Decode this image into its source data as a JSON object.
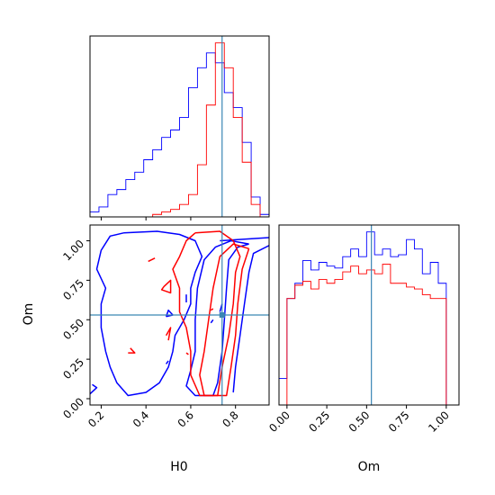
{
  "chart_data": [
    {
      "type": "histogram",
      "panel": "H0 marginal",
      "xlim": [
        0.15,
        0.95
      ],
      "series": [
        {
          "color": "#0000ff",
          "bins": [
            0.15,
            0.19,
            0.23,
            0.27,
            0.31,
            0.35,
            0.39,
            0.43,
            0.47,
            0.51,
            0.55,
            0.59,
            0.63,
            0.67,
            0.71,
            0.75,
            0.79,
            0.83,
            0.87,
            0.91,
            0.95
          ],
          "counts": [
            2,
            4,
            9,
            11,
            15,
            18,
            23,
            27,
            32,
            35,
            40,
            52,
            60,
            66,
            62,
            50,
            44,
            30,
            8,
            1
          ]
        },
        {
          "color": "#ff0000",
          "bins": [
            0.15,
            0.19,
            0.23,
            0.27,
            0.31,
            0.35,
            0.39,
            0.43,
            0.47,
            0.51,
            0.55,
            0.59,
            0.63,
            0.67,
            0.71,
            0.75,
            0.79,
            0.83,
            0.87,
            0.91,
            0.95
          ],
          "counts": [
            0,
            0,
            0,
            0,
            0,
            0,
            0,
            1,
            2,
            3,
            5,
            9,
            21,
            45,
            70,
            60,
            40,
            22,
            5,
            0
          ]
        }
      ],
      "truth_x": 0.74
    },
    {
      "type": "histogram",
      "panel": "Om marginal",
      "xlim": [
        -0.05,
        1.08
      ],
      "series": [
        {
          "color": "#0000ff",
          "bins": [
            -0.05,
            0.0,
            0.05,
            0.1,
            0.15,
            0.2,
            0.25,
            0.3,
            0.35,
            0.4,
            0.45,
            0.5,
            0.55,
            0.6,
            0.65,
            0.7,
            0.75,
            0.8,
            0.85,
            0.9,
            0.95,
            1.0,
            1.05
          ],
          "counts": [
            14,
            56,
            64,
            76,
            71,
            75,
            73,
            72,
            78,
            82,
            78,
            91,
            79,
            82,
            78,
            79,
            87,
            82,
            69,
            75,
            64,
            0
          ]
        },
        {
          "color": "#ff0000",
          "bins": [
            -0.05,
            0.0,
            0.05,
            0.1,
            0.15,
            0.2,
            0.25,
            0.3,
            0.35,
            0.4,
            0.45,
            0.5,
            0.55,
            0.6,
            0.65,
            0.7,
            0.75,
            0.8,
            0.85,
            0.9,
            0.95,
            1.0,
            1.05
          ],
          "counts": [
            0,
            56,
            63,
            65,
            61,
            66,
            64,
            66,
            70,
            73,
            69,
            71,
            69,
            74,
            64,
            64,
            62,
            61,
            58,
            56,
            56,
            0
          ]
        }
      ],
      "truth_x": 0.53
    },
    {
      "type": "contour",
      "panel": "H0 vs Om joint",
      "xlabel": "H0",
      "ylabel": "Om",
      "xlim": [
        0.15,
        0.95
      ],
      "ylim": [
        -0.04,
        1.1
      ],
      "xticks": [
        "0.2",
        "0.4",
        "0.6",
        "0.8"
      ],
      "yticks": [
        "0.00",
        "0.25",
        "0.50",
        "0.75",
        "1.00"
      ],
      "truth": [
        0.74,
        0.53
      ],
      "series": [
        {
          "color": "#0000ff",
          "contours": [
            [
              [
                0.3,
                1.05
              ],
              [
                0.45,
                1.06
              ],
              [
                0.55,
                1.04
              ],
              [
                0.62,
                1.0
              ],
              [
                0.65,
                0.9
              ],
              [
                0.62,
                0.8
              ],
              [
                0.6,
                0.7
              ],
              [
                0.6,
                0.6
              ],
              [
                0.57,
                0.5
              ],
              [
                0.53,
                0.4
              ],
              [
                0.52,
                0.3
              ],
              [
                0.5,
                0.2
              ],
              [
                0.46,
                0.1
              ],
              [
                0.4,
                0.04
              ],
              [
                0.32,
                0.02
              ],
              [
                0.27,
                0.1
              ],
              [
                0.24,
                0.2
              ],
              [
                0.22,
                0.3
              ],
              [
                0.2,
                0.45
              ],
              [
                0.2,
                0.6
              ],
              [
                0.22,
                0.7
              ],
              [
                0.18,
                0.82
              ],
              [
                0.2,
                0.94
              ],
              [
                0.24,
                1.03
              ],
              [
                0.3,
                1.05
              ]
            ],
            [
              [
                0.73,
                1.0
              ],
              [
                0.95,
                1.02
              ]
            ],
            [
              [
                0.95,
                0.97
              ],
              [
                0.88,
                0.92
              ],
              [
                0.86,
                0.8
              ],
              [
                0.84,
                0.6
              ],
              [
                0.82,
                0.4
              ],
              [
                0.8,
                0.2
              ],
              [
                0.79,
                0.04
              ]
            ],
            [
              [
                0.86,
                0.98
              ],
              [
                0.81,
                0.96
              ],
              [
                0.77,
                0.88
              ],
              [
                0.76,
                0.7
              ],
              [
                0.75,
                0.5
              ],
              [
                0.74,
                0.3
              ],
              [
                0.72,
                0.1
              ],
              [
                0.7,
                0.02
              ],
              [
                0.62,
                0.02
              ],
              [
                0.58,
                0.08
              ],
              [
                0.6,
                0.18
              ],
              [
                0.62,
                0.3
              ],
              [
                0.62,
                0.5
              ],
              [
                0.63,
                0.7
              ],
              [
                0.66,
                0.88
              ],
              [
                0.71,
                0.96
              ],
              [
                0.78,
                1.0
              ],
              [
                0.86,
                0.98
              ]
            ],
            [
              [
                0.15,
                0.03
              ],
              [
                0.18,
                0.07
              ],
              [
                0.16,
                0.09
              ]
            ],
            [
              [
                0.49,
                0.52
              ],
              [
                0.5,
                0.56
              ],
              [
                0.52,
                0.53
              ],
              [
                0.49,
                0.52
              ]
            ],
            [
              [
                0.58,
                0.61
              ],
              [
                0.58,
                0.66
              ]
            ],
            [
              [
                0.69,
                0.48
              ],
              [
                0.7,
                0.5
              ]
            ],
            [
              [
                0.49,
                0.22
              ],
              [
                0.5,
                0.24
              ]
            ],
            [
              [
                0.73,
                0.55
              ],
              [
                0.74,
                0.6
              ]
            ]
          ]
        },
        {
          "color": "#ff0000",
          "contours": [
            [
              [
                0.62,
                1.05
              ],
              [
                0.73,
                1.06
              ],
              [
                0.79,
                1.0
              ],
              [
                0.82,
                0.9
              ],
              [
                0.8,
                0.8
              ],
              [
                0.79,
                0.6
              ],
              [
                0.77,
                0.4
              ],
              [
                0.74,
                0.2
              ],
              [
                0.72,
                0.02
              ],
              [
                0.64,
                0.02
              ],
              [
                0.6,
                0.15
              ],
              [
                0.6,
                0.3
              ],
              [
                0.58,
                0.45
              ],
              [
                0.55,
                0.55
              ],
              [
                0.55,
                0.7
              ],
              [
                0.52,
                0.82
              ],
              [
                0.55,
                0.9
              ],
              [
                0.58,
                1.0
              ],
              [
                0.62,
                1.05
              ]
            ],
            [
              [
                0.86,
                0.95
              ],
              [
                0.83,
                0.82
              ],
              [
                0.81,
                0.6
              ],
              [
                0.8,
                0.4
              ],
              [
                0.78,
                0.2
              ],
              [
                0.76,
                0.02
              ],
              [
                0.66,
                0.02
              ],
              [
                0.64,
                0.15
              ],
              [
                0.66,
                0.3
              ],
              [
                0.68,
                0.5
              ],
              [
                0.7,
                0.7
              ],
              [
                0.73,
                0.9
              ],
              [
                0.79,
                0.98
              ],
              [
                0.86,
                0.95
              ]
            ],
            [
              [
                0.48,
                0.71
              ],
              [
                0.51,
                0.75
              ],
              [
                0.51,
                0.67
              ],
              [
                0.47,
                0.69
              ],
              [
                0.48,
                0.71
              ]
            ],
            [
              [
                0.33,
                0.32
              ],
              [
                0.35,
                0.29
              ],
              [
                0.32,
                0.29
              ]
            ],
            [
              [
                0.41,
                0.87
              ],
              [
                0.44,
                0.89
              ]
            ],
            [
              [
                0.49,
                0.4
              ],
              [
                0.51,
                0.45
              ],
              [
                0.5,
                0.37
              ]
            ],
            [
              [
                0.58,
                0.29
              ],
              [
                0.59,
                0.28
              ]
            ],
            [
              [
                0.69,
                0.56
              ],
              [
                0.7,
                0.57
              ]
            ]
          ]
        }
      ]
    }
  ],
  "labels": {
    "x_h0": "H0",
    "x_om": "Om",
    "y_om": "Om"
  }
}
